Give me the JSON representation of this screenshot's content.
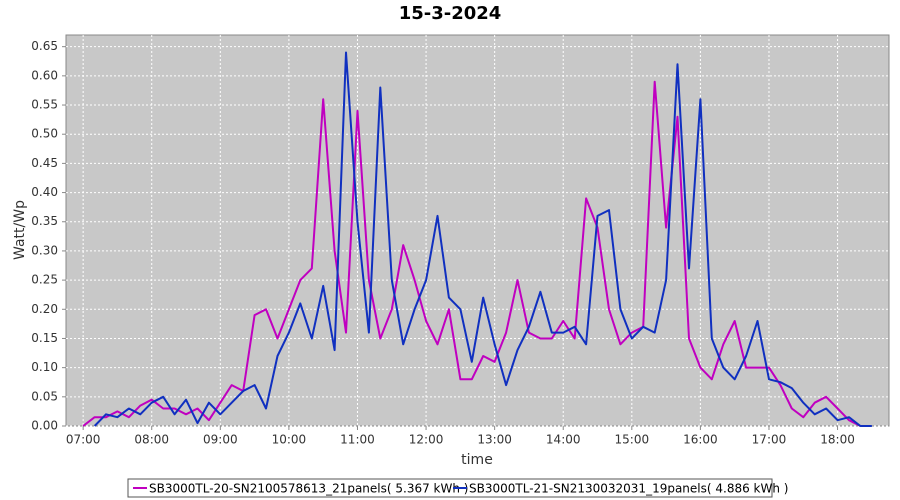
{
  "chart_data": {
    "type": "line",
    "title": "15-3-2024",
    "x_label": "time",
    "y_label": "Watt/Wp",
    "x": [
      "07:00",
      "07:10",
      "07:20",
      "07:30",
      "07:40",
      "07:50",
      "08:00",
      "08:10",
      "08:20",
      "08:30",
      "08:40",
      "08:50",
      "09:00",
      "09:10",
      "09:20",
      "09:30",
      "09:40",
      "09:50",
      "10:00",
      "10:10",
      "10:20",
      "10:30",
      "10:40",
      "10:50",
      "11:00",
      "11:10",
      "11:20",
      "11:30",
      "11:40",
      "11:50",
      "12:00",
      "12:10",
      "12:20",
      "12:30",
      "12:40",
      "12:50",
      "13:00",
      "13:10",
      "13:20",
      "13:30",
      "13:40",
      "13:50",
      "14:00",
      "14:10",
      "14:20",
      "14:30",
      "14:40",
      "14:50",
      "15:00",
      "15:10",
      "15:20",
      "15:30",
      "15:40",
      "15:50",
      "16:00",
      "16:10",
      "16:20",
      "16:30",
      "16:40",
      "16:50",
      "17:00",
      "17:10",
      "17:20",
      "17:30",
      "17:40",
      "17:50",
      "18:00",
      "18:10",
      "18:20",
      "18:30"
    ],
    "series": [
      {
        "name": "SB3000TL-20-SN2100578613_21panels( 5.367 kWh )",
        "color": "#c000c0",
        "values": [
          0.0,
          0.015,
          0.015,
          0.025,
          0.015,
          0.035,
          0.045,
          0.03,
          0.03,
          0.02,
          0.03,
          0.01,
          0.04,
          0.07,
          0.06,
          0.19,
          0.2,
          0.15,
          0.2,
          0.25,
          0.27,
          0.56,
          0.3,
          0.16,
          0.54,
          0.25,
          0.15,
          0.2,
          0.31,
          0.25,
          0.18,
          0.14,
          0.2,
          0.08,
          0.08,
          0.12,
          0.11,
          0.16,
          0.25,
          0.16,
          0.15,
          0.15,
          0.18,
          0.15,
          0.39,
          0.34,
          0.2,
          0.14,
          0.16,
          0.17,
          0.59,
          0.34,
          0.53,
          0.15,
          0.1,
          0.08,
          0.14,
          0.18,
          0.1,
          0.1,
          0.1,
          0.07,
          0.03,
          0.015,
          0.04,
          0.05,
          0.03,
          0.01,
          0.0,
          null
        ]
      },
      {
        "name": "SB3000TL-21-SN2130032031_19panels( 4.886 kWh )",
        "color": "#1030c0",
        "values": [
          null,
          0.0,
          0.02,
          0.015,
          0.03,
          0.02,
          0.04,
          0.05,
          0.02,
          0.045,
          0.005,
          0.04,
          0.02,
          0.04,
          0.06,
          0.07,
          0.03,
          0.12,
          0.16,
          0.21,
          0.15,
          0.24,
          0.13,
          0.64,
          0.35,
          0.16,
          0.58,
          0.25,
          0.14,
          0.2,
          0.25,
          0.36,
          0.22,
          0.2,
          0.11,
          0.22,
          0.14,
          0.07,
          0.13,
          0.17,
          0.23,
          0.16,
          0.16,
          0.17,
          0.14,
          0.36,
          0.37,
          0.2,
          0.15,
          0.17,
          0.16,
          0.25,
          0.62,
          0.27,
          0.56,
          0.15,
          0.1,
          0.08,
          0.12,
          0.18,
          0.08,
          0.075,
          0.065,
          0.04,
          0.02,
          0.03,
          0.01,
          0.015,
          0.0,
          0.0
        ]
      }
    ],
    "xlim": [
      "06:45",
      "18:45"
    ],
    "xticks": [
      "07:00",
      "08:00",
      "09:00",
      "10:00",
      "11:00",
      "12:00",
      "13:00",
      "14:00",
      "15:00",
      "16:00",
      "17:00",
      "18:00"
    ],
    "ylim": [
      0,
      0.67
    ],
    "yticks": [
      {
        "value": 0,
        "label": "0.00"
      },
      {
        "value": 0.05,
        "label": "0.05"
      },
      {
        "value": 0.1,
        "label": "0.10"
      },
      {
        "value": 0.15,
        "label": "0.15"
      },
      {
        "value": 0.2,
        "label": "0.20"
      },
      {
        "value": 0.25,
        "label": "0.25"
      },
      {
        "value": 0.3,
        "label": "0.30"
      },
      {
        "value": 0.35,
        "label": "0.35"
      },
      {
        "value": 0.4,
        "label": "0.40"
      },
      {
        "value": 0.45,
        "label": "0.45"
      },
      {
        "value": 0.5,
        "label": "0.50"
      },
      {
        "value": 0.55,
        "label": "0.55"
      },
      {
        "value": 0.6,
        "label": "0.60"
      },
      {
        "value": 0.65,
        "label": "0.65"
      }
    ],
    "grid": true,
    "legend": "bottom"
  }
}
